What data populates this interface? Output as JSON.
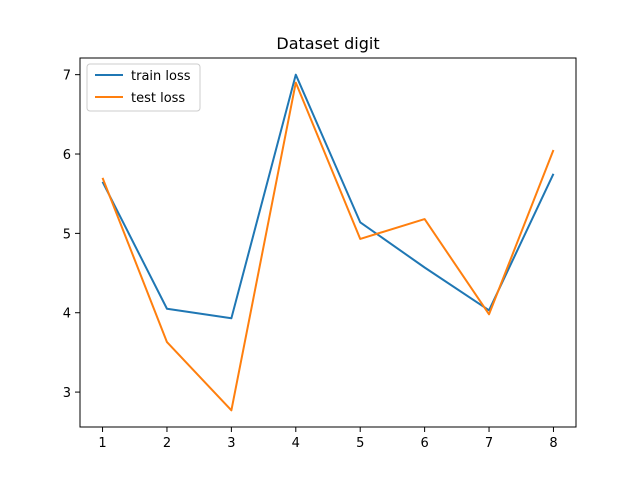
{
  "chart_data": {
    "type": "line",
    "title": "Dataset digit",
    "xlabel": "",
    "ylabel": "",
    "x": [
      1,
      2,
      3,
      4,
      5,
      6,
      7,
      8
    ],
    "xlim": [
      0.65,
      8.35
    ],
    "ylim": [
      2.56,
      7.21
    ],
    "xticks": [
      1,
      2,
      3,
      4,
      5,
      6,
      7,
      8
    ],
    "yticks": [
      3,
      4,
      5,
      6,
      7
    ],
    "grid": false,
    "legend_position": "top-left",
    "series": [
      {
        "name": "train loss",
        "color": "#1f77b4",
        "values": [
          5.65,
          4.05,
          3.93,
          7.0,
          5.14,
          4.57,
          4.03,
          5.75
        ]
      },
      {
        "name": "test loss",
        "color": "#ff7f0e",
        "values": [
          5.7,
          3.63,
          2.77,
          6.9,
          4.93,
          5.18,
          3.98,
          6.05
        ]
      }
    ]
  }
}
